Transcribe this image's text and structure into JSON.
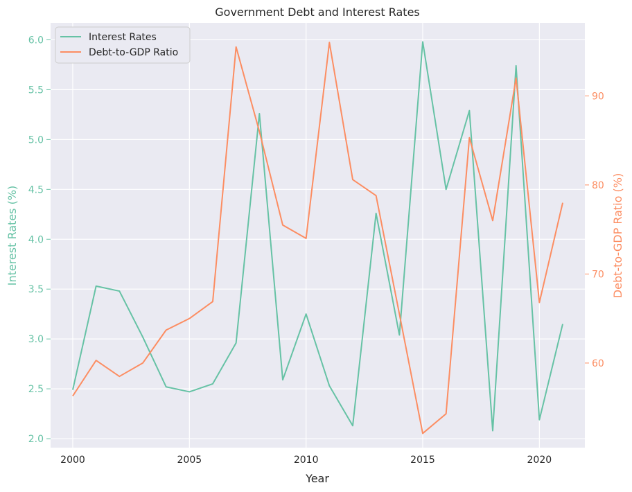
{
  "chart_data": {
    "type": "line",
    "title": "Government Debt and Interest Rates",
    "xlabel": "Year",
    "ylabel_left": "Interest Rates (%)",
    "ylabel_right": "Debt-to-GDP Ratio (%)",
    "x": [
      2000,
      2001,
      2002,
      2003,
      2004,
      2005,
      2006,
      2007,
      2008,
      2009,
      2010,
      2011,
      2012,
      2013,
      2014,
      2015,
      2016,
      2017,
      2018,
      2019,
      2020,
      2021
    ],
    "xlim": [
      1999.05,
      2021.95
    ],
    "xticks": [
      "2000",
      "2005",
      "2010",
      "2015",
      "2020"
    ],
    "xtick_values": [
      2000,
      2005,
      2010,
      2015,
      2020
    ],
    "ylim_left": [
      1.91,
      6.17
    ],
    "yticks_left": [
      "2.0",
      "2.5",
      "3.0",
      "3.5",
      "4.0",
      "4.5",
      "5.0",
      "5.5",
      "6.0"
    ],
    "ytick_values_left": [
      2.0,
      2.5,
      3.0,
      3.5,
      4.0,
      4.5,
      5.0,
      5.5,
      6.0
    ],
    "ylim_right": [
      50.5,
      98.2
    ],
    "yticks_right": [
      "60",
      "70",
      "80",
      "90"
    ],
    "ytick_values_right": [
      60,
      70,
      80,
      90
    ],
    "grid": true,
    "legend_position": "top-left",
    "series": [
      {
        "name": "Interest Rates",
        "axis": "left",
        "color": "#66c2a5",
        "values": [
          2.49,
          3.53,
          3.48,
          3.02,
          2.52,
          2.47,
          2.55,
          2.96,
          5.26,
          2.59,
          3.25,
          2.53,
          2.13,
          4.26,
          3.04,
          5.98,
          4.5,
          5.29,
          2.08,
          5.74,
          2.19,
          3.15
        ]
      },
      {
        "name": "Debt-to-GDP Ratio",
        "axis": "right",
        "color": "#fc8d62",
        "values": [
          56.3,
          60.3,
          58.5,
          60.0,
          63.7,
          65.0,
          66.9,
          95.5,
          86.0,
          75.5,
          74.0,
          96.0,
          80.6,
          78.8,
          65.5,
          52.1,
          54.3,
          85.3,
          76.0,
          92.0,
          66.8,
          78.0
        ]
      }
    ]
  }
}
